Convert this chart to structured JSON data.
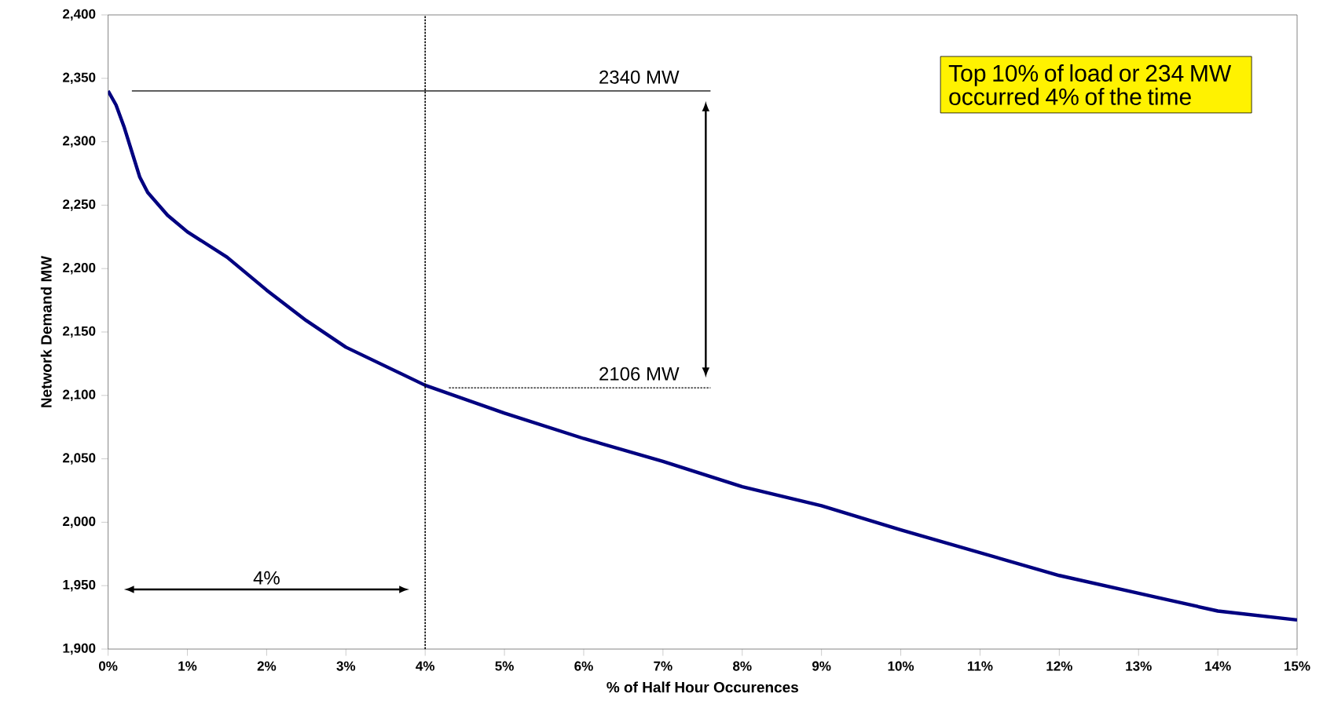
{
  "chart_data": {
    "type": "line",
    "xlabel": "% of Half Hour Occurences",
    "ylabel": "Network Demand MW",
    "xlim": [
      0,
      15
    ],
    "ylim": [
      1900,
      2400
    ],
    "xticks": [
      {
        "value": 0,
        "label": "0%"
      },
      {
        "value": 1,
        "label": "1%"
      },
      {
        "value": 2,
        "label": "2%"
      },
      {
        "value": 3,
        "label": "3%"
      },
      {
        "value": 4,
        "label": "4%"
      },
      {
        "value": 5,
        "label": "5%"
      },
      {
        "value": 6,
        "label": "6%"
      },
      {
        "value": 7,
        "label": "7%"
      },
      {
        "value": 8,
        "label": "8%"
      },
      {
        "value": 9,
        "label": "9%"
      },
      {
        "value": 10,
        "label": "10%"
      },
      {
        "value": 11,
        "label": "11%"
      },
      {
        "value": 12,
        "label": "12%"
      },
      {
        "value": 13,
        "label": "13%"
      },
      {
        "value": 14,
        "label": "14%"
      },
      {
        "value": 15,
        "label": "15%"
      }
    ],
    "yticks": [
      {
        "value": 1900,
        "label": "1,900"
      },
      {
        "value": 1950,
        "label": "1,950"
      },
      {
        "value": 2000,
        "label": "2,000"
      },
      {
        "value": 2050,
        "label": "2,050"
      },
      {
        "value": 2100,
        "label": "2,100"
      },
      {
        "value": 2150,
        "label": "2,150"
      },
      {
        "value": 2200,
        "label": "2,200"
      },
      {
        "value": 2250,
        "label": "2,250"
      },
      {
        "value": 2300,
        "label": "2,300"
      },
      {
        "value": 2350,
        "label": "2,350"
      },
      {
        "value": 2400,
        "label": "2,400"
      }
    ],
    "grid": false,
    "marker": "none",
    "series": [
      {
        "color": "#000080",
        "line_style": "solid",
        "x": [
          0,
          0.1,
          0.2,
          0.3,
          0.4,
          0.5,
          0.75,
          1,
          1.5,
          2,
          2.5,
          3,
          3.5,
          4,
          5,
          6,
          7,
          8,
          9,
          10,
          11,
          12,
          13,
          14,
          15
        ],
        "values": [
          2340,
          2329,
          2312,
          2292,
          2272,
          2260,
          2242,
          2229,
          2209,
          2183,
          2159,
          2138,
          2123,
          2108,
          2086,
          2066,
          2048,
          2028,
          2013,
          1994,
          1976,
          1958,
          1944,
          1930,
          1923
        ]
      },
      {
        "color": "#000000",
        "line_style": "solid",
        "x": [
          0.3,
          7.6
        ],
        "values": [
          2340,
          2340
        ]
      },
      {
        "color": "#000000",
        "line_style": "dotted",
        "x": [
          4.3,
          7.6
        ],
        "values": [
          2106,
          2106
        ]
      }
    ],
    "ref_lines": [
      {
        "axis": "x",
        "value": 4,
        "color": "#000000",
        "line_style": "dotted"
      }
    ],
    "annotations": [
      "2340 MW",
      "2106 MW",
      "4%",
      "Top 10% of load or 234 MW occurred 4% of the time"
    ]
  }
}
